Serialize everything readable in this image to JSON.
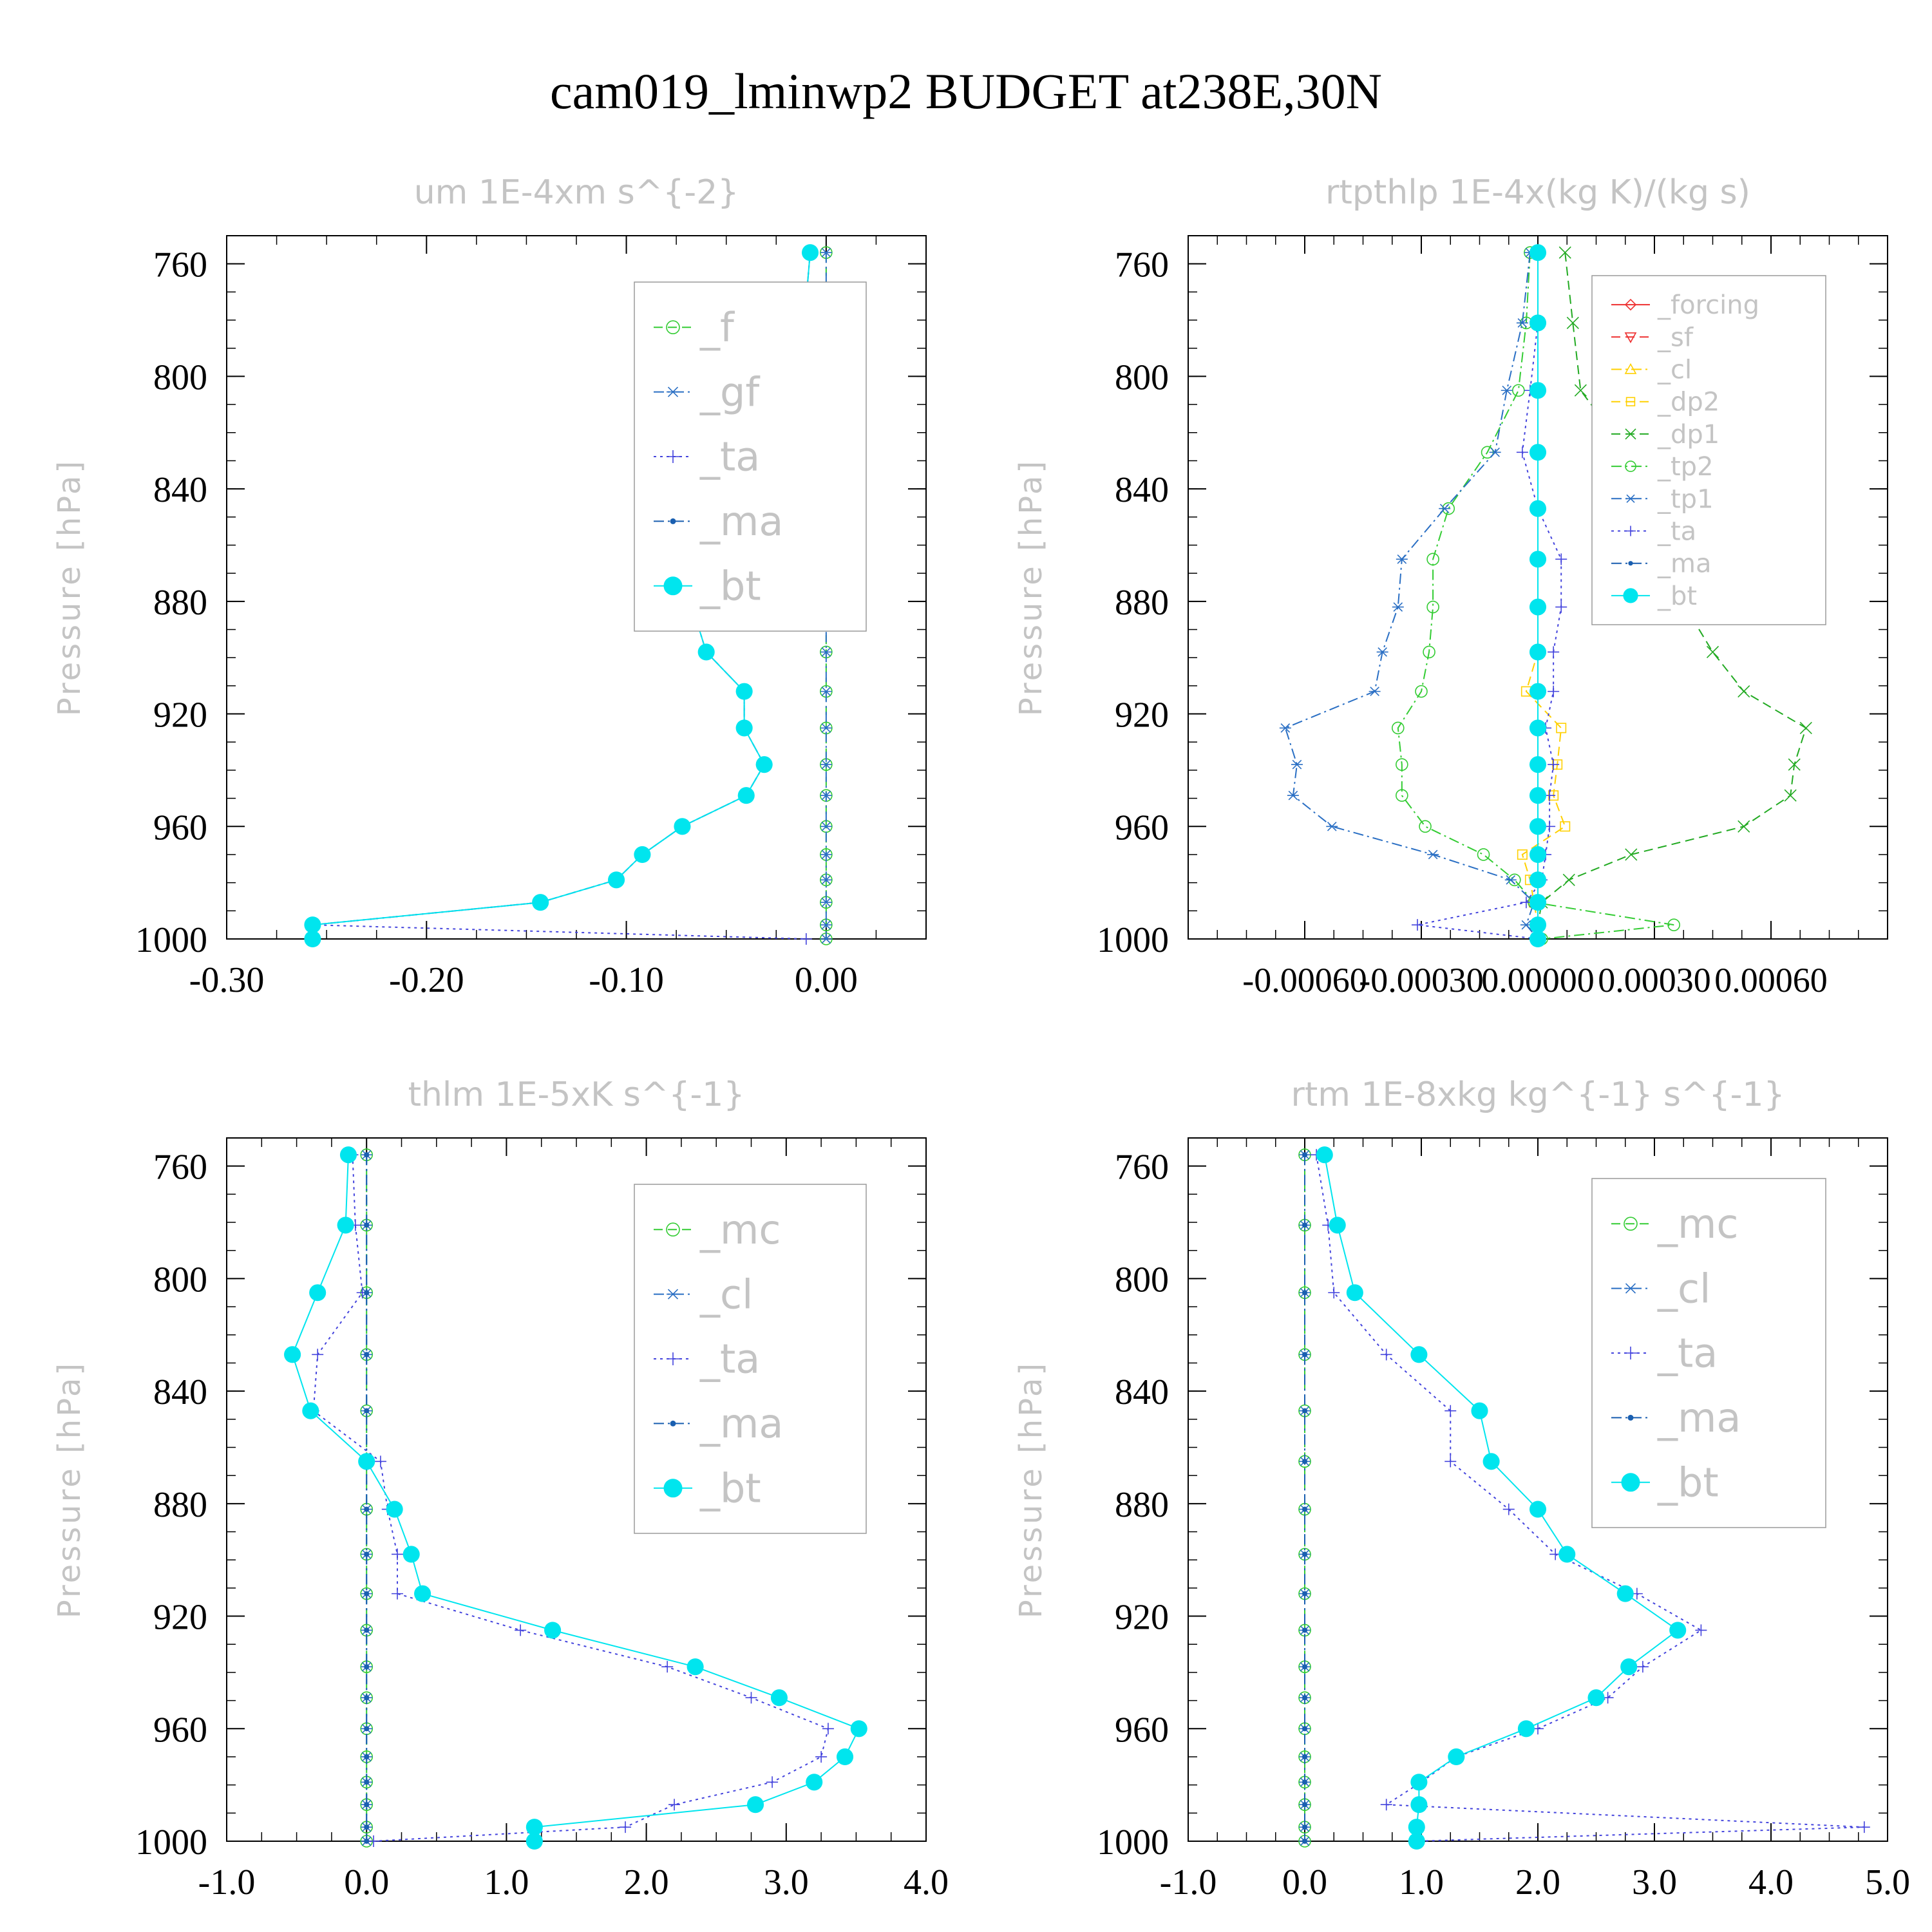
{
  "title": "cam019_lminwp2  BUDGET at238E,30N",
  "colors": {
    "green": "#33cc33",
    "blue_dash": "#2a6fc4",
    "purple_dot": "#4444dd",
    "ma": "#1a5fb0",
    "cyan": "#00e5ee",
    "red": "#ee3030",
    "yellow": "#ffd000",
    "dp1_green": "#22aa22",
    "gray": "#c4c4c4"
  },
  "chart_data": [
    {
      "type": "line",
      "title": "um  1E-4xm s^{-2}",
      "ylabel": "Pressure [hPa]",
      "xlim": [
        -0.3,
        0.05
      ],
      "ylim": [
        750,
        1000
      ],
      "xticks": [
        -0.3,
        -0.2,
        -0.1,
        0.0
      ],
      "xtick_labels": [
        "-0.30",
        "-0.20",
        "-0.10",
        "0.00"
      ],
      "yticks": [
        760,
        800,
        840,
        880,
        920,
        960,
        1000
      ],
      "ytick_labels": [
        "760",
        "800",
        "840",
        "880",
        "920",
        "960",
        "1000"
      ],
      "y": [
        756,
        781,
        805,
        827,
        847,
        865,
        882,
        898,
        912,
        925,
        938,
        949,
        960,
        970,
        979,
        987,
        995,
        1000
      ],
      "legend_position": "upper-right",
      "legend_font": 62,
      "series": [
        {
          "name": "_f",
          "color": "green",
          "marker": "circle",
          "dash": "dashed",
          "values": [
            0,
            0,
            0,
            0,
            0,
            0,
            0,
            0,
            0,
            0,
            0,
            0,
            0,
            0,
            0,
            0,
            0,
            0
          ]
        },
        {
          "name": "_gf",
          "color": "blue_dash",
          "marker": "asterisk",
          "dash": "dashdot",
          "values": [
            0,
            0,
            0,
            0,
            0,
            0,
            0,
            0,
            0,
            0,
            0,
            0,
            0,
            0,
            0,
            0,
            0,
            0
          ]
        },
        {
          "name": "_ta",
          "color": "purple_dot",
          "marker": "plus",
          "dash": "dotted",
          "values": [
            -0.008,
            -0.011,
            -0.013,
            -0.026,
            -0.046,
            -0.063,
            -0.067,
            -0.06,
            -0.041,
            -0.041,
            -0.031,
            -0.04,
            -0.072,
            -0.092,
            -0.105,
            -0.143,
            -0.257,
            -0.01
          ]
        },
        {
          "name": "_ma",
          "color": "ma",
          "marker": "dot",
          "dash": "dashdot",
          "values": [
            -0.008,
            -0.011,
            -0.013,
            -0.026,
            -0.046,
            -0.063,
            -0.067,
            -0.06,
            -0.041,
            -0.041,
            -0.031,
            -0.04,
            -0.072,
            -0.092,
            -0.105,
            -0.143,
            -0.257,
            -0.257
          ]
        },
        {
          "name": "_bt",
          "color": "cyan",
          "marker": "bigdot",
          "dash": "solid",
          "values": [
            -0.008,
            -0.011,
            -0.013,
            -0.026,
            -0.046,
            -0.063,
            -0.067,
            -0.06,
            -0.041,
            -0.041,
            -0.031,
            -0.04,
            -0.072,
            -0.092,
            -0.105,
            -0.143,
            -0.257,
            -0.257
          ]
        }
      ]
    },
    {
      "type": "line",
      "title": "rtpthlp  1E-4x(kg K)/(kg s)",
      "ylabel": "Pressure [hPa]",
      "xlim": [
        -0.0009,
        0.0009
      ],
      "ylim": [
        750,
        1000
      ],
      "xticks": [
        -0.0006,
        -0.0003,
        0.0,
        0.0003,
        0.0006
      ],
      "xtick_labels": [
        "-0.00060",
        "-0.00030",
        "0.00000",
        "0.00030",
        "0.00060"
      ],
      "yticks": [
        760,
        800,
        840,
        880,
        920,
        960,
        1000
      ],
      "ytick_labels": [
        "760",
        "800",
        "840",
        "880",
        "920",
        "960",
        "1000"
      ],
      "y": [
        756,
        781,
        805,
        827,
        847,
        865,
        882,
        898,
        912,
        925,
        938,
        949,
        960,
        970,
        979,
        987,
        995,
        1000
      ],
      "legend_position": "upper-right",
      "legend_font": 40,
      "series": [
        {
          "name": "_forcing",
          "color": "red",
          "marker": "diamond",
          "dash": "solid",
          "values": [
            0,
            0,
            0,
            0,
            0,
            0,
            0,
            0,
            0,
            0,
            0,
            0,
            0,
            0,
            0,
            0,
            0,
            0
          ]
        },
        {
          "name": "_sf",
          "color": "red",
          "marker": "triangle-down",
          "dash": "dashed",
          "values": [
            0,
            0,
            0,
            0,
            0,
            0,
            0,
            0,
            0,
            0,
            0,
            0,
            0,
            0,
            0,
            0,
            0,
            0
          ]
        },
        {
          "name": "_cl",
          "color": "yellow",
          "marker": "triangle",
          "dash": "dashdot",
          "values": [
            0,
            0,
            0,
            0,
            0,
            0,
            0,
            0,
            0,
            0,
            0,
            0,
            0,
            0,
            0,
            0,
            0,
            0
          ]
        },
        {
          "name": "_dp2",
          "color": "yellow",
          "marker": "square",
          "dash": "dashed",
          "values": [
            0,
            0,
            0,
            0,
            0,
            0,
            0,
            0,
            -3e-05,
            6e-05,
            5e-05,
            4e-05,
            7e-05,
            -4e-05,
            -2e-05,
            -1e-05,
            0,
            0
          ]
        },
        {
          "name": "_dp1",
          "color": "dp1_green",
          "marker": "x",
          "dash": "dashed",
          "values": [
            7e-05,
            9e-05,
            0.00011,
            0.00023,
            0.00033,
            0.00035,
            0.00038,
            0.00045,
            0.00053,
            0.00069,
            0.00066,
            0.00065,
            0.00053,
            0.00024,
            8e-05,
            1e-05,
            0,
            0
          ]
        },
        {
          "name": "_tp2",
          "color": "green",
          "marker": "circle",
          "dash": "dashdot",
          "values": [
            -2e-05,
            -3e-05,
            -5e-05,
            -0.00013,
            -0.00023,
            -0.00027,
            -0.00027,
            -0.00028,
            -0.0003,
            -0.00036,
            -0.00035,
            -0.00035,
            -0.00029,
            -0.00014,
            -6e-05,
            -1e-05,
            0.00035,
            1e-05
          ]
        },
        {
          "name": "_tp1",
          "color": "blue_dash",
          "marker": "asterisk",
          "dash": "dashdot",
          "values": [
            -2e-05,
            -4e-05,
            -8e-05,
            -0.00011,
            -0.00024,
            -0.00035,
            -0.00036,
            -0.0004,
            -0.00042,
            -0.00065,
            -0.00062,
            -0.00063,
            -0.00053,
            -0.00027,
            -7e-05,
            -1e-05,
            -3e-05,
            0
          ]
        },
        {
          "name": "_ta",
          "color": "purple_dot",
          "marker": "plus",
          "dash": "dotted",
          "values": [
            0,
            0,
            -2e-05,
            -4e-05,
            0,
            6e-05,
            6e-05,
            4e-05,
            4e-05,
            2e-05,
            4e-05,
            3e-05,
            3e-05,
            2e-05,
            1e-05,
            -3e-05,
            -0.00031,
            0
          ]
        },
        {
          "name": "_ma",
          "color": "ma",
          "marker": "dot",
          "dash": "dashdot",
          "values": [
            0,
            0,
            0,
            0,
            0,
            0,
            0,
            0,
            0,
            0,
            0,
            0,
            0,
            0,
            0,
            0,
            0,
            0
          ]
        },
        {
          "name": "_bt",
          "color": "cyan",
          "marker": "bigdot",
          "dash": "solid",
          "values": [
            0,
            0,
            0,
            0,
            0,
            0,
            0,
            0,
            0,
            0,
            0,
            0,
            0,
            0,
            0,
            0,
            0,
            0
          ]
        }
      ]
    },
    {
      "type": "line",
      "title": "thlm  1E-5xK s^{-1}",
      "ylabel": "Pressure [hPa]",
      "xlim": [
        -1.0,
        4.0
      ],
      "ylim": [
        750,
        1000
      ],
      "xticks": [
        -1.0,
        0.0,
        1.0,
        2.0,
        3.0,
        4.0
      ],
      "xtick_labels": [
        "-1.0",
        "0.0",
        "1.0",
        "2.0",
        "3.0",
        "4.0"
      ],
      "yticks": [
        760,
        800,
        840,
        880,
        920,
        960,
        1000
      ],
      "ytick_labels": [
        "760",
        "800",
        "840",
        "880",
        "920",
        "960",
        "1000"
      ],
      "y": [
        756,
        781,
        805,
        827,
        847,
        865,
        882,
        898,
        912,
        925,
        938,
        949,
        960,
        970,
        979,
        987,
        995,
        1000
      ],
      "legend_position": "upper-right",
      "legend_font": 62,
      "series": [
        {
          "name": "_mc",
          "color": "green",
          "marker": "circle",
          "dash": "dashed",
          "values": [
            0,
            0,
            0,
            0,
            0,
            0,
            0,
            0,
            0,
            0,
            0,
            0,
            0,
            0,
            0,
            0,
            0,
            0
          ]
        },
        {
          "name": "_cl",
          "color": "blue_dash",
          "marker": "asterisk",
          "dash": "dashdot",
          "values": [
            0,
            0,
            0,
            0,
            0,
            0,
            0,
            0,
            0,
            0,
            0,
            0,
            0,
            0,
            0,
            0,
            0,
            0
          ]
        },
        {
          "name": "_ta",
          "color": "purple_dot",
          "marker": "plus",
          "dash": "dotted",
          "values": [
            -0.1,
            -0.08,
            -0.03,
            -0.35,
            -0.38,
            0.1,
            0.15,
            0.22,
            0.22,
            1.1,
            2.15,
            2.75,
            3.3,
            3.25,
            2.9,
            2.2,
            1.85,
            0.05
          ]
        },
        {
          "name": "_ma",
          "color": "ma",
          "marker": "dot",
          "dash": "dashdot",
          "values": [
            0,
            0,
            0,
            0,
            0,
            0,
            0,
            0,
            0,
            0,
            0,
            0,
            0,
            0,
            0,
            0,
            0,
            0
          ]
        },
        {
          "name": "_bt",
          "color": "cyan",
          "marker": "bigdot",
          "dash": "solid",
          "values": [
            -0.13,
            -0.15,
            -0.35,
            -0.53,
            -0.4,
            0.0,
            0.2,
            0.32,
            0.4,
            1.33,
            2.35,
            2.95,
            3.52,
            3.42,
            3.2,
            2.78,
            1.2,
            1.2
          ]
        }
      ]
    },
    {
      "type": "line",
      "title": "rtm  1E-8xkg kg^{-1} s^{-1}",
      "ylabel": "Pressure [hPa]",
      "xlim": [
        -1.0,
        5.0
      ],
      "ylim": [
        750,
        1000
      ],
      "xticks": [
        -1.0,
        0.0,
        1.0,
        2.0,
        3.0,
        4.0,
        5.0
      ],
      "xtick_labels": [
        "-1.0",
        "0.0",
        "1.0",
        "2.0",
        "3.0",
        "4.0",
        "5.0"
      ],
      "yticks": [
        760,
        800,
        840,
        880,
        920,
        960,
        1000
      ],
      "ytick_labels": [
        "760",
        "800",
        "840",
        "880",
        "920",
        "960",
        "1000"
      ],
      "y": [
        756,
        781,
        805,
        827,
        847,
        865,
        882,
        898,
        912,
        925,
        938,
        949,
        960,
        970,
        979,
        987,
        995,
        1000
      ],
      "legend_position": "upper-right",
      "legend_font": 62,
      "series": [
        {
          "name": "_mc",
          "color": "green",
          "marker": "circle",
          "dash": "dashed",
          "values": [
            0,
            0,
            0,
            0,
            0,
            0,
            0,
            0,
            0,
            0,
            0,
            0,
            0,
            0,
            0,
            0,
            0,
            0
          ]
        },
        {
          "name": "_cl",
          "color": "blue_dash",
          "marker": "asterisk",
          "dash": "dashdot",
          "values": [
            0,
            0,
            0,
            0,
            0,
            0,
            0,
            0,
            0,
            0,
            0,
            0,
            0,
            0,
            0,
            0,
            0,
            0
          ]
        },
        {
          "name": "_ta",
          "color": "purple_dot",
          "marker": "plus",
          "dash": "dotted",
          "values": [
            0.1,
            0.2,
            0.25,
            0.7,
            1.25,
            1.25,
            1.75,
            2.15,
            2.85,
            3.4,
            2.9,
            2.6,
            2.0,
            1.3,
            1.0,
            0.7,
            4.8,
            0.95
          ]
        },
        {
          "name": "_ma",
          "color": "ma",
          "marker": "dot",
          "dash": "dashdot",
          "values": [
            0,
            0,
            0,
            0,
            0,
            0,
            0,
            0,
            0,
            0,
            0,
            0,
            0,
            0,
            0,
            0,
            0,
            0
          ]
        },
        {
          "name": "_bt",
          "color": "cyan",
          "marker": "bigdot",
          "dash": "solid",
          "values": [
            0.17,
            0.28,
            0.43,
            0.98,
            1.5,
            1.6,
            2.0,
            2.25,
            2.75,
            3.2,
            2.78,
            2.5,
            1.9,
            1.3,
            0.98,
            0.98,
            0.96,
            0.96
          ]
        }
      ]
    }
  ]
}
